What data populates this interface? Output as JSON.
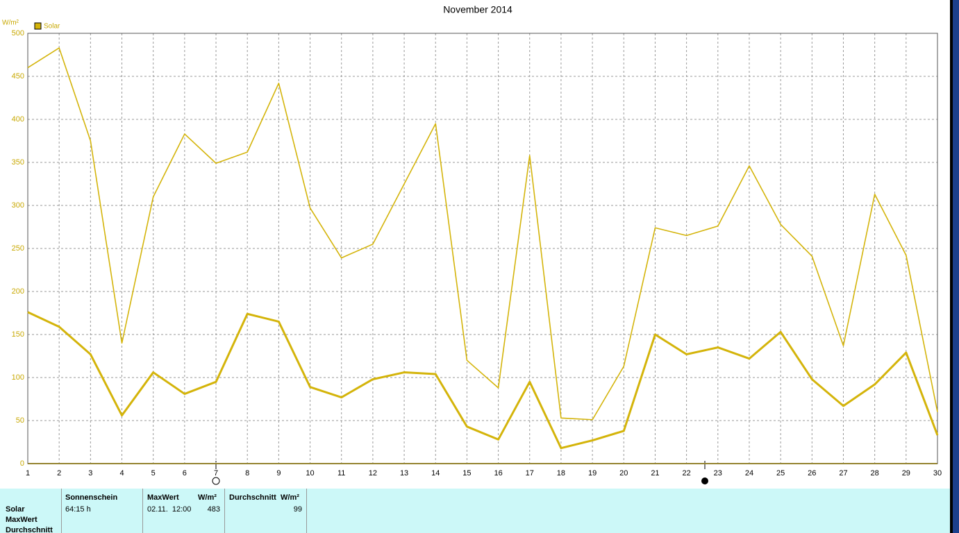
{
  "chart_data": {
    "type": "line",
    "title": "November 2014",
    "y_unit": "W/m²",
    "x": [
      1,
      2,
      3,
      4,
      5,
      6,
      7,
      8,
      9,
      10,
      11,
      12,
      13,
      14,
      15,
      16,
      17,
      18,
      19,
      20,
      21,
      22,
      23,
      24,
      25,
      26,
      27,
      28,
      29,
      30
    ],
    "xlim": [
      1,
      30
    ],
    "xticks": [
      1,
      2,
      3,
      4,
      5,
      6,
      7,
      8,
      9,
      10,
      11,
      12,
      13,
      14,
      15,
      16,
      17,
      18,
      19,
      20,
      21,
      22,
      23,
      24,
      25,
      26,
      27,
      28,
      29,
      30
    ],
    "ylim": [
      0,
      500
    ],
    "yticks": [
      0,
      50,
      100,
      150,
      200,
      250,
      300,
      350,
      400,
      450,
      500
    ],
    "grid": true,
    "series": [
      {
        "name": "Solar",
        "color": "#d4b40a",
        "values": [
          176,
          159,
          127,
          56,
          106,
          81,
          95,
          174,
          165,
          89,
          77,
          98,
          106,
          104,
          43,
          28,
          95,
          18,
          27,
          38,
          150,
          127,
          135,
          122,
          153,
          98,
          67,
          92,
          129,
          33
        ]
      },
      {
        "color": "#d4b40a",
        "values": [
          460,
          483,
          375,
          140,
          310,
          383,
          349,
          362,
          442,
          297,
          239,
          255,
          325,
          395,
          120,
          88,
          358,
          53,
          51,
          113,
          274,
          265,
          276,
          346,
          278,
          241,
          137,
          313,
          242,
          60
        ]
      }
    ]
  },
  "table": {
    "row_labels": [
      "Solar",
      "MaxWert",
      "Durchschnitt"
    ],
    "columns": [
      {
        "header": "Sonnenschein",
        "values": [
          "64:15 h"
        ]
      },
      {
        "header": "MaxWert",
        "unit": "W/m²",
        "values": [
          "02.11.  12:00",
          "483"
        ]
      },
      {
        "header": "Durchschnitt",
        "unit": "W/m²",
        "values": [
          "99"
        ]
      }
    ]
  }
}
